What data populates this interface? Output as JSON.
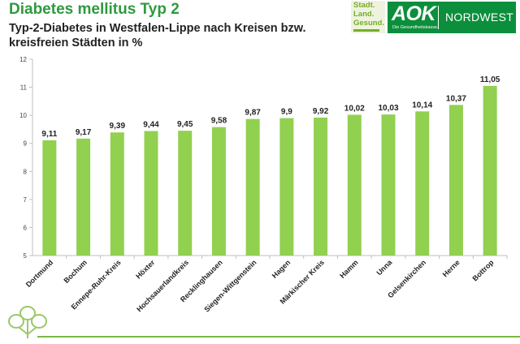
{
  "header": {
    "title": "Diabetes mellitus Typ 2",
    "subtitle": "Typ-2-Diabetes in Westfalen-Lippe nach Kreisen bzw. kreisfreien Städten in %"
  },
  "logos": {
    "claim_lines": [
      "Stadt.",
      "Land.",
      "Gesund."
    ],
    "brand": "AOK",
    "tagline": "Die Gesundheitskasse.",
    "region": "NORDWEST",
    "brand_color": "#0c8f3c"
  },
  "colors": {
    "title": "#2e9a3e",
    "bar": "#92d050",
    "accent_line": "#7ab648"
  },
  "chart_data": {
    "type": "bar",
    "categories": [
      "Dortmund",
      "Bochum",
      "Ennepe-Ruhr-Kreis",
      "Höxter",
      "Hochsauerlandkreis",
      "Recklinghausen",
      "Siegen-Wittgenstein",
      "Hagen",
      "Märkischer Kreis",
      "Hamm",
      "Unna",
      "Gelsenkirchen",
      "Herne",
      "Bottrop"
    ],
    "values": [
      9.11,
      9.17,
      9.39,
      9.44,
      9.45,
      9.58,
      9.87,
      9.9,
      9.92,
      10.02,
      10.03,
      10.14,
      10.37,
      11.05
    ],
    "value_labels": [
      "9,11",
      "9,17",
      "9,39",
      "9,44",
      "9,45",
      "9,58",
      "9,87",
      "9,9",
      "9,92",
      "10,02",
      "10,03",
      "10,14",
      "10,37",
      "11,05"
    ],
    "y_ticks": [
      "5",
      "6",
      "7",
      "8",
      "9",
      "10",
      "11",
      "12"
    ],
    "ylim": [
      5,
      12
    ],
    "grid": false,
    "legend": "none"
  }
}
